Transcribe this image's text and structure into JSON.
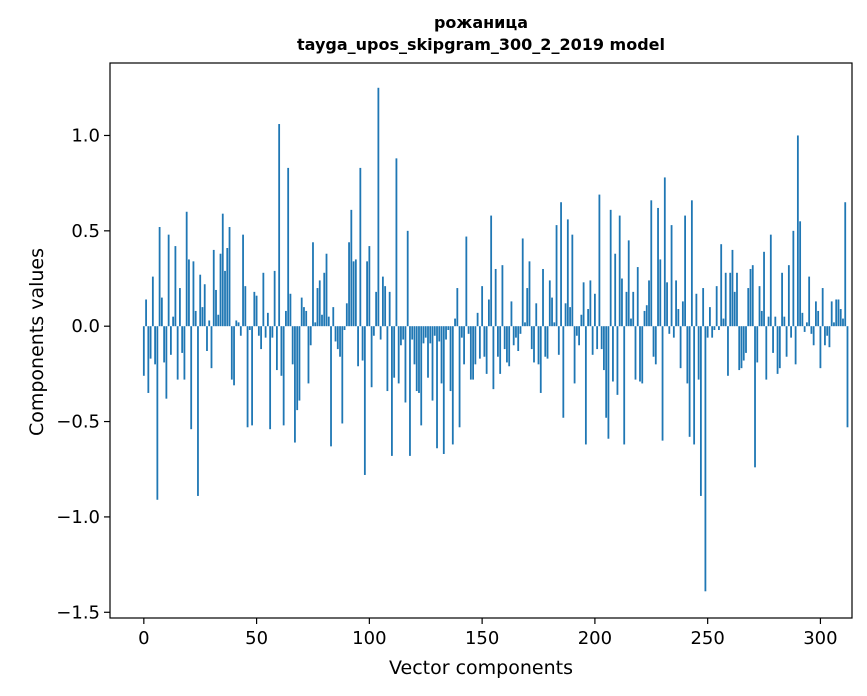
{
  "chart_data": {
    "type": "bar",
    "title": "рожаница",
    "subtitle": "tayga_upos_skipgram_300_2_2019 model",
    "xlabel": "Vector components",
    "ylabel": "Components values",
    "xlim": [
      -15,
      314
    ],
    "ylim": [
      -1.53,
      1.38
    ],
    "xticks": [
      0,
      50,
      100,
      150,
      200,
      250,
      300
    ],
    "yticks": [
      -1.5,
      -1.0,
      -0.5,
      0.0,
      0.5,
      1.0
    ],
    "ytick_labels": [
      "−1.5",
      "−1.0",
      "−0.5",
      "0.0",
      "0.5",
      "1.0"
    ],
    "grid": false,
    "color": "#1f77b4",
    "values": [
      -0.26,
      0.14,
      -0.35,
      -0.17,
      0.26,
      -0.2,
      -0.91,
      0.52,
      0.15,
      -0.19,
      -0.38,
      0.48,
      -0.15,
      0.05,
      0.42,
      -0.28,
      0.2,
      -0.14,
      -0.28,
      0.6,
      0.35,
      -0.54,
      0.34,
      0.08,
      -0.89,
      0.27,
      0.1,
      0.22,
      -0.13,
      0.03,
      -0.22,
      0.4,
      0.19,
      0.06,
      0.38,
      0.59,
      0.29,
      0.41,
      0.52,
      -0.28,
      -0.31,
      0.03,
      0.02,
      -0.05,
      0.48,
      0.21,
      -0.53,
      -0.02,
      -0.52,
      0.18,
      0.16,
      -0.05,
      -0.12,
      0.28,
      -0.06,
      0.07,
      -0.54,
      -0.06,
      0.29,
      -0.23,
      1.06,
      -0.26,
      -0.52,
      0.08,
      0.83,
      0.17,
      -0.2,
      -0.61,
      -0.44,
      -0.39,
      0.15,
      0.1,
      0.08,
      -0.3,
      -0.1,
      0.44,
      0.02,
      0.2,
      0.24,
      0.06,
      0.28,
      0.38,
      0.05,
      -0.63,
      0.1,
      -0.08,
      -0.12,
      -0.16,
      -0.51,
      -0.02,
      0.12,
      0.44,
      0.61,
      0.34,
      0.35,
      -0.21,
      0.83,
      -0.18,
      -0.78,
      0.34,
      0.42,
      -0.32,
      -0.05,
      0.18,
      1.25,
      -0.07,
      0.26,
      0.21,
      -0.34,
      0.18,
      -0.68,
      -0.27,
      0.88,
      -0.3,
      -0.1,
      -0.07,
      -0.4,
      0.5,
      -0.68,
      -0.07,
      -0.2,
      -0.34,
      -0.35,
      -0.52,
      -0.09,
      -0.06,
      -0.27,
      -0.09,
      -0.39,
      -0.05,
      -0.64,
      -0.08,
      -0.3,
      -0.67,
      -0.07,
      -0.02,
      -0.34,
      -0.62,
      0.04,
      0.2,
      -0.53,
      -0.06,
      -0.2,
      0.47,
      -0.04,
      -0.28,
      -0.28,
      -0.2,
      0.07,
      -0.17,
      0.21,
      -0.16,
      -0.25,
      0.14,
      0.58,
      -0.33,
      0.3,
      -0.16,
      -0.25,
      0.32,
      -0.12,
      -0.19,
      -0.21,
      0.13,
      -0.1,
      -0.06,
      -0.13,
      -0.04,
      0.46,
      0.02,
      0.2,
      0.34,
      -0.12,
      -0.19,
      0.12,
      -0.2,
      -0.35,
      0.3,
      -0.16,
      -0.17,
      0.24,
      0.15,
      0.02,
      0.53,
      -0.15,
      0.65,
      -0.48,
      0.12,
      0.56,
      0.1,
      0.48,
      -0.3,
      -0.05,
      -0.1,
      0.06,
      0.23,
      -0.62,
      0.09,
      0.24,
      -0.15,
      0.17,
      -0.12,
      0.69,
      -0.12,
      -0.23,
      -0.48,
      -0.59,
      0.61,
      -0.29,
      0.38,
      -0.36,
      0.58,
      0.25,
      -0.62,
      0.18,
      0.45,
      0.04,
      0.18,
      -0.28,
      0.31,
      -0.29,
      -0.3,
      0.08,
      0.11,
      0.24,
      0.66,
      -0.16,
      -0.2,
      0.62,
      0.35,
      -0.6,
      0.78,
      0.23,
      -0.04,
      0.53,
      -0.06,
      0.24,
      0.09,
      -0.22,
      0.13,
      0.58,
      -0.3,
      -0.58,
      0.66,
      -0.62,
      0.17,
      -0.28,
      -0.89,
      0.2,
      -1.39,
      -0.06,
      0.1,
      -0.06,
      -0.02,
      0.21,
      -0.02,
      0.43,
      0.04,
      0.28,
      -0.26,
      0.28,
      0.4,
      0.18,
      0.28,
      -0.23,
      -0.22,
      -0.18,
      -0.14,
      0.2,
      0.3,
      0.32,
      -0.74,
      -0.19,
      0.21,
      0.08,
      0.39,
      -0.28,
      0.05,
      0.48,
      -0.14,
      0.05,
      -0.25,
      -0.22,
      0.28,
      0.05,
      -0.16,
      0.32,
      -0.06,
      0.5,
      -0.2,
      1.0,
      0.55,
      0.07,
      -0.03,
      0.02,
      0.26,
      -0.04,
      -0.1,
      0.13,
      0.08,
      -0.22,
      0.2,
      -0.1,
      -0.05,
      -0.11,
      0.13,
      0.02,
      0.14,
      0.14,
      0.09,
      0.04,
      0.65,
      -0.53
    ]
  }
}
